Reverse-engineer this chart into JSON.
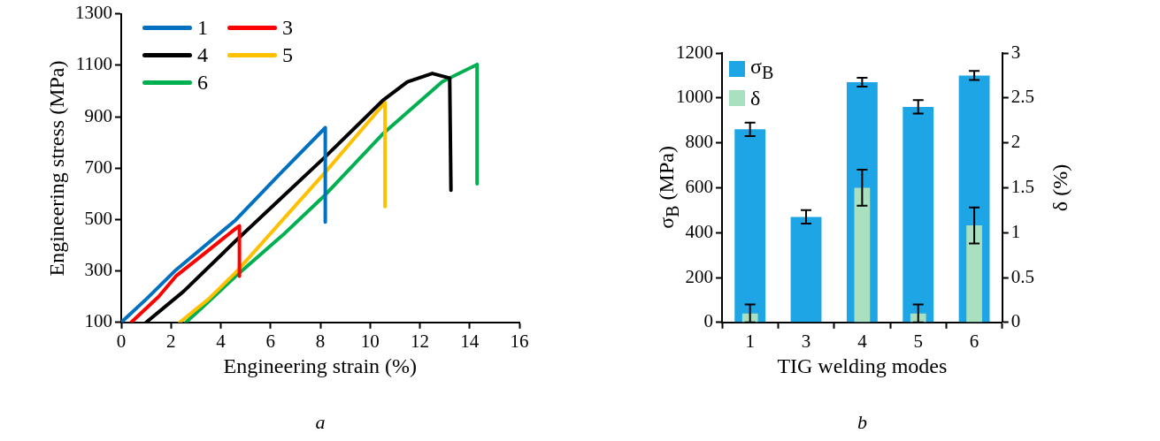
{
  "chart_data": [
    {
      "type": "line",
      "xlabel": "Engineering strain (%)",
      "ylabel": "Engineering stress (MPa)",
      "xlim": [
        0,
        16
      ],
      "xticks": [
        0,
        2,
        4,
        6,
        8,
        10,
        12,
        14,
        16
      ],
      "ylim": [
        100,
        1300
      ],
      "yticks": [
        100,
        300,
        500,
        700,
        900,
        1100,
        1300
      ],
      "grid": false,
      "legend": "top left",
      "marker": "none",
      "line_style": "solid",
      "annotations": [
        "a"
      ],
      "series": [
        {
          "name": "1",
          "color": "#0070c0",
          "x": [
            0,
            1,
            2.2,
            4.6,
            6.4,
            8.2,
            8.2
          ],
          "values": [
            100,
            190,
            304,
            498,
            680,
            857,
            490
          ]
        },
        {
          "name": "3",
          "color": "#ff0000",
          "x": [
            0.4,
            1.5,
            2.2,
            3.5,
            4.6,
            4.75,
            4.75
          ],
          "values": [
            100,
            200,
            280,
            380,
            465,
            475,
            280
          ]
        },
        {
          "name": "4",
          "color": "#000000",
          "x": [
            1.0,
            2.5,
            4.6,
            6.5,
            8.2,
            10.5,
            11.5,
            12.5,
            13.2,
            13.25
          ],
          "values": [
            100,
            220,
            417,
            590,
            744,
            962,
            1035,
            1068,
            1050,
            614
          ]
        },
        {
          "name": "5",
          "color": "#ffc000",
          "x": [
            2.35,
            3.5,
            4.6,
            6.5,
            8.2,
            10.6,
            10.6
          ],
          "values": [
            100,
            190,
            294,
            500,
            684,
            955,
            550
          ]
        },
        {
          "name": "6",
          "color": "#00b050",
          "x": [
            2.6,
            3.5,
            4.6,
            6.5,
            8.2,
            10.5,
            12.9,
            14.3,
            14.3
          ],
          "values": [
            100,
            180,
            280,
            440,
            596,
            832,
            1036,
            1103,
            639
          ]
        }
      ]
    },
    {
      "type": "bar",
      "xlabel": "TIG welding modes",
      "ylabel": "σ$_{B}$ (MPa)",
      "y2label": "δ (%)",
      "categories": [
        "1",
        "3",
        "4",
        "5",
        "6"
      ],
      "ylim": [
        0,
        1200
      ],
      "yticks": [
        0,
        200,
        400,
        600,
        800,
        1000,
        1200
      ],
      "y2lim": [
        0,
        3
      ],
      "y2ticks": [
        0,
        0.5,
        1,
        1.5,
        2,
        2.5,
        3
      ],
      "grid": false,
      "legend": "top left",
      "annotations": [
        "b"
      ],
      "series": [
        {
          "name": "σ$_{B}$",
          "color": "#1ea5e6",
          "values": [
            860,
            470,
            1070,
            960,
            1100
          ],
          "errors": [
            30,
            30,
            20,
            30,
            20
          ]
        },
        {
          "name": "δ",
          "color": "#a8e0c0",
          "axis": "y2",
          "values": [
            0.1,
            null,
            1.5,
            0.1,
            1.08
          ],
          "errors": [
            0.1,
            null,
            0.2,
            0.1,
            0.2
          ]
        }
      ]
    }
  ]
}
